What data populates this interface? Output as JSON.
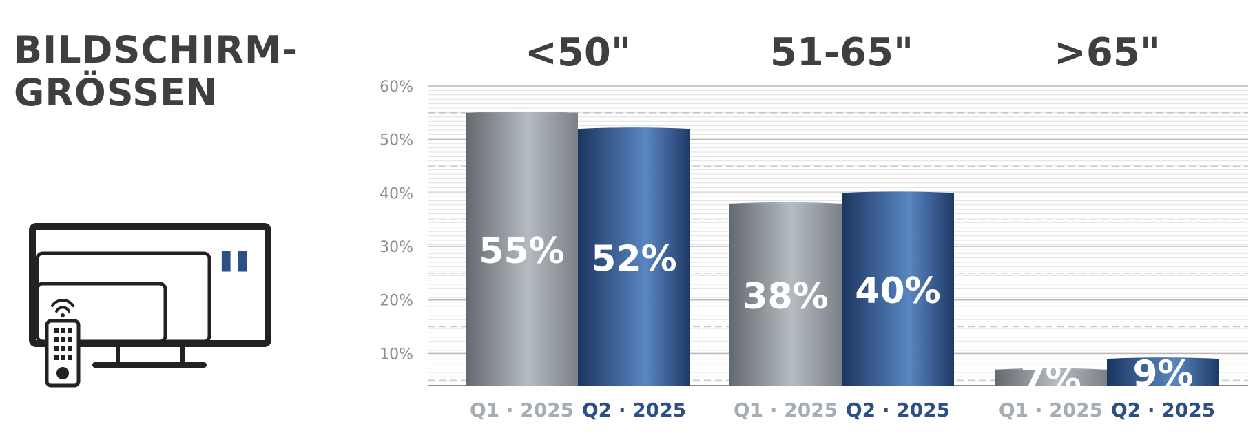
{
  "title": {
    "line1": "BILDSCHIRM-",
    "line2": "GRÖSSEN"
  },
  "icons": {
    "tv": "tv-remote-icon",
    "inch_mark": "\""
  },
  "colors": {
    "q1_series": "#a6adb3",
    "q2_series": "#2c4f86",
    "title": "#3f3f3f",
    "axis_text": "#8c8c8c"
  },
  "chart_data": {
    "type": "bar",
    "groups": [
      "<50\"",
      "51-65\"",
      ">65\""
    ],
    "series": [
      {
        "name": "Q1 · 2025",
        "values": [
          55,
          38,
          7
        ]
      },
      {
        "name": "Q2 · 2025",
        "values": [
          52,
          40,
          9
        ]
      }
    ],
    "bar_labels": [
      [
        "55%",
        "52%"
      ],
      [
        "38%",
        "40%"
      ],
      [
        "7%",
        "9%"
      ]
    ],
    "yticks": [
      "60%",
      "50%",
      "40%",
      "30%",
      "20%",
      "10%"
    ],
    "ytick_values": [
      60,
      50,
      40,
      30,
      20,
      10
    ],
    "ylim": [
      4,
      60
    ],
    "grid": true,
    "legend": "below-each-bar"
  }
}
